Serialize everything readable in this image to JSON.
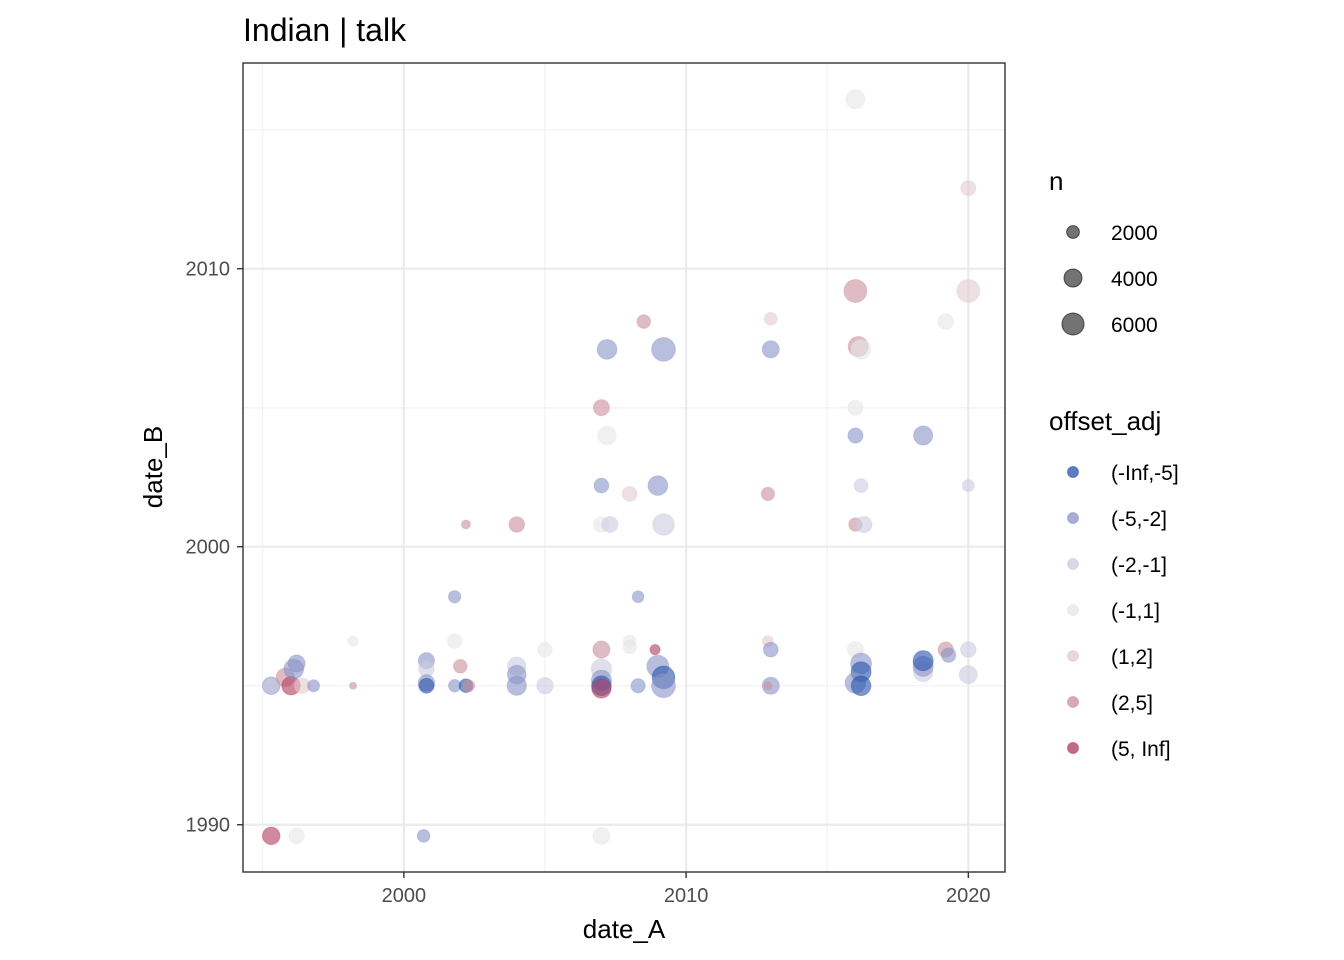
{
  "chart_data": {
    "type": "scatter",
    "title": "Indian | talk",
    "xlabel": "date_A",
    "ylabel": "date_B",
    "xlim": [
      1994.3,
      2021.3
    ],
    "ylim": [
      1988.3,
      2017.4
    ],
    "x_ticks": [
      2000,
      2010,
      2020
    ],
    "y_ticks": [
      1990,
      2000,
      2010
    ],
    "x_tick_labels": [
      "2000",
      "2010",
      "2020"
    ],
    "y_tick_labels": [
      "1990",
      "2000",
      "2010"
    ],
    "grid": true,
    "legend_position": "right",
    "size_legend": {
      "title": "n",
      "entries": [
        {
          "label": "2000",
          "value": 2000
        },
        {
          "label": "4000",
          "value": 4000
        },
        {
          "label": "6000",
          "value": 6000
        }
      ]
    },
    "color_legend": {
      "title": "offset_adj",
      "entries": [
        {
          "label": "(-Inf,-5]",
          "color": "#2452ad"
        },
        {
          "label": "(-5,-2]",
          "color": "#8893c6"
        },
        {
          "label": "(-2,-1]",
          "color": "#c9cce0"
        },
        {
          "label": "(-1,1]",
          "color": "#e6e6e6"
        },
        {
          "label": "(1,2]",
          "color": "#e3c9ce"
        },
        {
          "label": "(2,5]",
          "color": "#c98f9b"
        },
        {
          "label": "(5, Inf]",
          "color": "#b03a5c"
        }
      ]
    },
    "series_categories": [
      "(-Inf,-5]",
      "(-5,-2]",
      "(-2,-1]",
      "(-1,1]",
      "(1,2]",
      "(2,5]",
      "(5, Inf]"
    ],
    "points": [
      {
        "x": 2016.0,
        "y": 2016.1,
        "n": 4500,
        "cat": "(-1,1]"
      },
      {
        "x": 2020.0,
        "y": 2012.9,
        "n": 2800,
        "cat": "(1,2]"
      },
      {
        "x": 2016.0,
        "y": 2009.2,
        "n": 6500,
        "cat": "(2,5]"
      },
      {
        "x": 2020.0,
        "y": 2009.2,
        "n": 6500,
        "cat": "(1,2]"
      },
      {
        "x": 2013.0,
        "y": 2008.2,
        "n": 2000,
        "cat": "(1,2]"
      },
      {
        "x": 2008.5,
        "y": 2008.1,
        "n": 2300,
        "cat": "(2,5]"
      },
      {
        "x": 2019.2,
        "y": 2008.1,
        "n": 3100,
        "cat": "(-1,1]"
      },
      {
        "x": 2007.2,
        "y": 2007.1,
        "n": 4800,
        "cat": "(-5,-2]"
      },
      {
        "x": 2009.2,
        "y": 2007.1,
        "n": 7000,
        "cat": "(-5,-2]"
      },
      {
        "x": 2013.0,
        "y": 2007.1,
        "n": 3600,
        "cat": "(-5,-2]"
      },
      {
        "x": 2016.1,
        "y": 2007.2,
        "n": 5000,
        "cat": "(2,5]"
      },
      {
        "x": 2016.2,
        "y": 2007.1,
        "n": 4800,
        "cat": "(-1,1]"
      },
      {
        "x": 2007.0,
        "y": 2005.0,
        "n": 3200,
        "cat": "(2,5]"
      },
      {
        "x": 2016.0,
        "y": 2005.0,
        "n": 2900,
        "cat": "(-1,1]"
      },
      {
        "x": 2007.2,
        "y": 2004.0,
        "n": 4200,
        "cat": "(-1,1]"
      },
      {
        "x": 2016.0,
        "y": 2004.0,
        "n": 2800,
        "cat": "(-5,-2]"
      },
      {
        "x": 2018.4,
        "y": 2004.0,
        "n": 4500,
        "cat": "(-5,-2]"
      },
      {
        "x": 2007.0,
        "y": 2002.2,
        "n": 2700,
        "cat": "(-5,-2]"
      },
      {
        "x": 2009.0,
        "y": 2002.2,
        "n": 4800,
        "cat": "(-5,-2]"
      },
      {
        "x": 2016.2,
        "y": 2002.2,
        "n": 2400,
        "cat": "(-2,-1]"
      },
      {
        "x": 2020.0,
        "y": 2002.2,
        "n": 1800,
        "cat": "(-2,-1]"
      },
      {
        "x": 2008.0,
        "y": 2001.9,
        "n": 2700,
        "cat": "(1,2]"
      },
      {
        "x": 2012.9,
        "y": 2001.9,
        "n": 2200,
        "cat": "(2,5]"
      },
      {
        "x": 2002.2,
        "y": 2000.8,
        "n": 1000,
        "cat": "(2,5]"
      },
      {
        "x": 2004.0,
        "y": 2000.8,
        "n": 3000,
        "cat": "(2,5]"
      },
      {
        "x": 2007.0,
        "y": 2000.8,
        "n": 3000,
        "cat": "(-1,1]"
      },
      {
        "x": 2007.3,
        "y": 2000.8,
        "n": 3200,
        "cat": "(-2,-1]"
      },
      {
        "x": 2009.2,
        "y": 2000.8,
        "n": 5800,
        "cat": "(-2,-1]"
      },
      {
        "x": 2016.0,
        "y": 2000.8,
        "n": 2200,
        "cat": "(2,5]"
      },
      {
        "x": 2016.3,
        "y": 2000.8,
        "n": 3300,
        "cat": "(-2,-1]"
      },
      {
        "x": 2001.8,
        "y": 1998.2,
        "n": 1900,
        "cat": "(-5,-2]"
      },
      {
        "x": 2008.3,
        "y": 1998.2,
        "n": 1700,
        "cat": "(-5,-2]"
      },
      {
        "x": 1998.2,
        "y": 1996.6,
        "n": 1300,
        "cat": "(-1,1]"
      },
      {
        "x": 2001.8,
        "y": 1996.6,
        "n": 2600,
        "cat": "(-1,1]"
      },
      {
        "x": 2008.0,
        "y": 1996.6,
        "n": 2000,
        "cat": "(-1,1]"
      },
      {
        "x": 2012.9,
        "y": 1996.6,
        "n": 1500,
        "cat": "(1,2]"
      },
      {
        "x": 2005.0,
        "y": 1996.3,
        "n": 2600,
        "cat": "(-1,1]"
      },
      {
        "x": 2007.0,
        "y": 1996.3,
        "n": 3600,
        "cat": "(2,5]"
      },
      {
        "x": 2008.0,
        "y": 1996.4,
        "n": 2300,
        "cat": "(-1,1]"
      },
      {
        "x": 2008.9,
        "y": 1996.3,
        "n": 1300,
        "cat": "(5, Inf]"
      },
      {
        "x": 2013.0,
        "y": 1996.3,
        "n": 2700,
        "cat": "(-5,-2]"
      },
      {
        "x": 2016.0,
        "y": 1996.3,
        "n": 3200,
        "cat": "(-1,1]"
      },
      {
        "x": 2019.2,
        "y": 1996.3,
        "n": 2900,
        "cat": "(2,5]"
      },
      {
        "x": 2019.3,
        "y": 1996.1,
        "n": 2600,
        "cat": "(-5,-2]"
      },
      {
        "x": 2020.0,
        "y": 1996.3,
        "n": 3000,
        "cat": "(-2,-1]"
      },
      {
        "x": 1995.3,
        "y": 1995.0,
        "n": 3800,
        "cat": "(-5,-2]"
      },
      {
        "x": 1995.3,
        "y": 1995.0,
        "n": 3000,
        "cat": "(-2,-1]"
      },
      {
        "x": 1995.8,
        "y": 1995.3,
        "n": 4200,
        "cat": "(2,5]"
      },
      {
        "x": 1996.0,
        "y": 1995.0,
        "n": 4200,
        "cat": "(5, Inf]"
      },
      {
        "x": 1996.1,
        "y": 1995.6,
        "n": 4800,
        "cat": "(-5,-2]"
      },
      {
        "x": 1996.2,
        "y": 1995.8,
        "n": 3600,
        "cat": "(-5,-2]"
      },
      {
        "x": 1996.4,
        "y": 1995.0,
        "n": 3000,
        "cat": "(1,2]"
      },
      {
        "x": 1996.8,
        "y": 1995.0,
        "n": 1800,
        "cat": "(-5,-2]"
      },
      {
        "x": 1998.2,
        "y": 1995.0,
        "n": 600,
        "cat": "(2,5]"
      },
      {
        "x": 2000.8,
        "y": 1995.9,
        "n": 3200,
        "cat": "(-5,-2]"
      },
      {
        "x": 2000.8,
        "y": 1995.6,
        "n": 3000,
        "cat": "(-2,-1]"
      },
      {
        "x": 2000.8,
        "y": 1995.1,
        "n": 3400,
        "cat": "(-5,-2]"
      },
      {
        "x": 2000.8,
        "y": 1995.0,
        "n": 2800,
        "cat": "(-Inf,-5]"
      },
      {
        "x": 2002.0,
        "y": 1995.7,
        "n": 2300,
        "cat": "(2,5]"
      },
      {
        "x": 2001.8,
        "y": 1995.0,
        "n": 1900,
        "cat": "(-5,-2]"
      },
      {
        "x": 2002.2,
        "y": 1995.0,
        "n": 2300,
        "cat": "(-Inf,-5]"
      },
      {
        "x": 2002.3,
        "y": 1995.0,
        "n": 1700,
        "cat": "(2,5]"
      },
      {
        "x": 2004.0,
        "y": 1995.7,
        "n": 4200,
        "cat": "(-2,-1]"
      },
      {
        "x": 2004.0,
        "y": 1995.4,
        "n": 4300,
        "cat": "(-5,-2]"
      },
      {
        "x": 2004.0,
        "y": 1995.0,
        "n": 4600,
        "cat": "(-5,-2]"
      },
      {
        "x": 2005.0,
        "y": 1995.0,
        "n": 3400,
        "cat": "(-2,-1]"
      },
      {
        "x": 2007.0,
        "y": 1995.6,
        "n": 5200,
        "cat": "(-2,-1]"
      },
      {
        "x": 2007.0,
        "y": 1995.2,
        "n": 5000,
        "cat": "(-5,-2]"
      },
      {
        "x": 2007.0,
        "y": 1995.0,
        "n": 4800,
        "cat": "(-Inf,-5]"
      },
      {
        "x": 2007.0,
        "y": 1994.9,
        "n": 4600,
        "cat": "(5, Inf]"
      },
      {
        "x": 2008.3,
        "y": 1995.0,
        "n": 2500,
        "cat": "(-5,-2]"
      },
      {
        "x": 2009.0,
        "y": 1995.7,
        "n": 6000,
        "cat": "(-5,-2]"
      },
      {
        "x": 2009.2,
        "y": 1995.3,
        "n": 6400,
        "cat": "(-Inf,-5]"
      },
      {
        "x": 2009.2,
        "y": 1995.0,
        "n": 7000,
        "cat": "(-5,-2]"
      },
      {
        "x": 2013.0,
        "y": 1995.0,
        "n": 3600,
        "cat": "(-5,-2]"
      },
      {
        "x": 2012.9,
        "y": 1995.0,
        "n": 800,
        "cat": "(2,5]"
      },
      {
        "x": 2016.2,
        "y": 1995.8,
        "n": 5400,
        "cat": "(-5,-2]"
      },
      {
        "x": 2016.2,
        "y": 1995.5,
        "n": 5000,
        "cat": "(-Inf,-5]"
      },
      {
        "x": 2016.0,
        "y": 1995.1,
        "n": 5200,
        "cat": "(-5,-2]"
      },
      {
        "x": 2016.2,
        "y": 1995.0,
        "n": 4800,
        "cat": "(-Inf,-5]"
      },
      {
        "x": 2018.4,
        "y": 1995.5,
        "n": 4800,
        "cat": "(-2,-1]"
      },
      {
        "x": 2018.4,
        "y": 1995.7,
        "n": 5000,
        "cat": "(-5,-2]"
      },
      {
        "x": 2018.4,
        "y": 1995.9,
        "n": 5000,
        "cat": "(-Inf,-5]"
      },
      {
        "x": 2020.0,
        "y": 1995.4,
        "n": 4000,
        "cat": "(-2,-1]"
      },
      {
        "x": 1995.3,
        "y": 1989.6,
        "n": 3800,
        "cat": "(5, Inf]"
      },
      {
        "x": 1996.2,
        "y": 1989.6,
        "n": 3000,
        "cat": "(-1,1]"
      },
      {
        "x": 2000.7,
        "y": 1989.6,
        "n": 2000,
        "cat": "(-5,-2]"
      },
      {
        "x": 2007.0,
        "y": 1989.6,
        "n": 3600,
        "cat": "(-1,1]"
      }
    ]
  }
}
